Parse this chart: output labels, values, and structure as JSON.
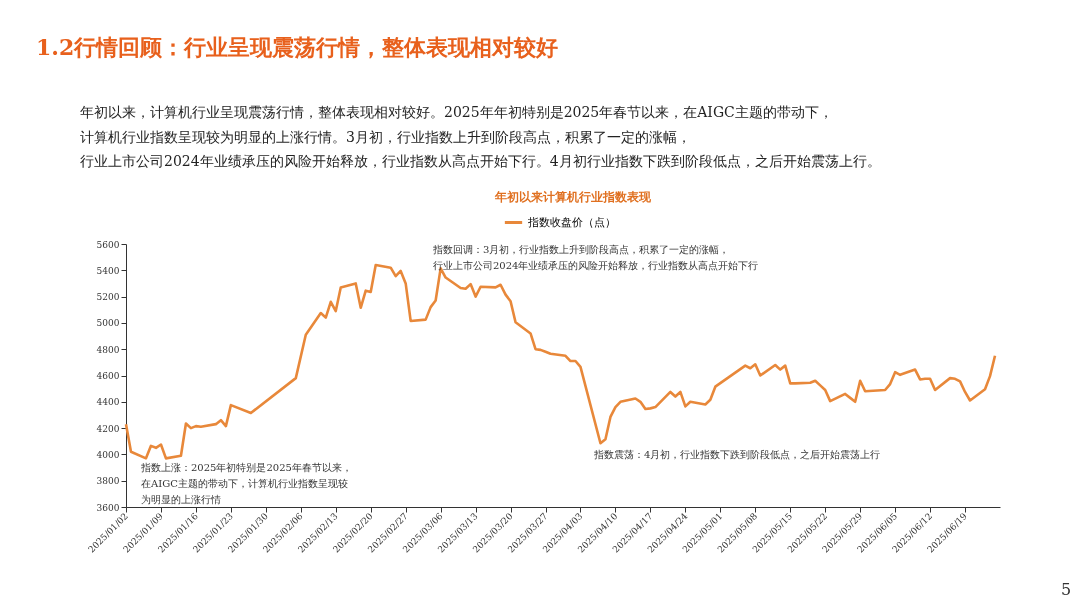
{
  "chart_data": {
    "type": "line",
    "title": "年初以来计算机行业指数表现",
    "subtitle": "年初以来，计算机行业呈现震荡行情，整体表现相对较好。2025年年初特别是2025年春节以来，在AIGC主题的带动下，计算机行业指数呈现较为明显的上涨行情。3月初，行业指数上升到阶段高点，积累了一定的涨幅，行业上市公司2024年业绩承压的风险开始释放，行业指数从高点开始下行。4月初行业指数下跌到阶段低点，之后开始震荡上行。",
    "annotations": [
      "1.2行情回顾：行业呈现震荡行情，整体表现相对较好",
      "指数上涨：2025年初特别是2025年春节以来，在AIGC主题的带动下，计算机行业指数呈现较为明显的上涨行情",
      "指数回调：3月初，行业指数上升到阶段高点，积累了一定的涨幅，行业上市公司2024年业绩承压的风险开始释放，行业指数从高点开始下行",
      "指数震荡：4月初，行业指数下跌到阶段低点，之后开始震荡上行",
      "5"
    ],
    "x": [
      "2025-01-02",
      "2025-01-03",
      "2025-01-06",
      "2025-01-07",
      "2025-01-08",
      "2025-01-09",
      "2025-01-10",
      "2025-01-13",
      "2025-01-14",
      "2025-01-15",
      "2025-01-16",
      "2025-01-17",
      "2025-01-20",
      "2025-01-21",
      "2025-01-22",
      "2025-01-23",
      "2025-01-27",
      "2025-02-05",
      "2025-02-07",
      "2025-02-10",
      "2025-02-11",
      "2025-02-12",
      "2025-02-13",
      "2025-02-14",
      "2025-02-17",
      "2025-02-18",
      "2025-02-19",
      "2025-02-20",
      "2025-02-21",
      "2025-02-24",
      "2025-02-25",
      "2025-02-26",
      "2025-02-27",
      "2025-02-28",
      "2025-03-03",
      "2025-03-04",
      "2025-03-05",
      "2025-03-06",
      "2025-03-07",
      "2025-03-10",
      "2025-03-11",
      "2025-03-12",
      "2025-03-13",
      "2025-03-14",
      "2025-03-17",
      "2025-03-18",
      "2025-03-19",
      "2025-03-20",
      "2025-03-21",
      "2025-03-24",
      "2025-03-25",
      "2025-03-26",
      "2025-03-27",
      "2025-03-28",
      "2025-03-31",
      "2025-04-01",
      "2025-04-02",
      "2025-04-03",
      "2025-04-07",
      "2025-04-08",
      "2025-04-09",
      "2025-04-10",
      "2025-04-11",
      "2025-04-14",
      "2025-04-15",
      "2025-04-16",
      "2025-04-17",
      "2025-04-18",
      "2025-04-21",
      "2025-04-22",
      "2025-04-23",
      "2025-04-24",
      "2025-04-25",
      "2025-04-28",
      "2025-04-29",
      "2025-04-30",
      "2025-05-06",
      "2025-05-07",
      "2025-05-08",
      "2025-05-09",
      "2025-05-12",
      "2025-05-13",
      "2025-05-14",
      "2025-05-15",
      "2025-05-16",
      "2025-05-19",
      "2025-05-20",
      "2025-05-21",
      "2025-05-22",
      "2025-05-23",
      "2025-05-26",
      "2025-05-27",
      "2025-05-28",
      "2025-05-29",
      "2025-05-30",
      "2025-06-03",
      "2025-06-04",
      "2025-06-05",
      "2025-06-06",
      "2025-06-09",
      "2025-06-10",
      "2025-06-11",
      "2025-06-12",
      "2025-06-13",
      "2025-06-16",
      "2025-06-17",
      "2025-06-18",
      "2025-06-19",
      "2025-06-20",
      "2025-06-23",
      "2025-06-24",
      "2025-06-25"
    ],
    "series": [
      {
        "name": "指数收盘价（点）",
        "color": "#e8883a",
        "values": [
          4230,
          4020,
          3970,
          4065,
          4050,
          4075,
          3970,
          3990,
          4235,
          4200,
          4215,
          4210,
          4230,
          4260,
          4215,
          4375,
          4315,
          4580,
          4910,
          5075,
          5040,
          5160,
          5090,
          5270,
          5300,
          5115,
          5245,
          5235,
          5440,
          5420,
          5355,
          5395,
          5300,
          5015,
          5025,
          5120,
          5170,
          5415,
          5345,
          5265,
          5260,
          5295,
          5200,
          5275,
          5270,
          5290,
          5215,
          5165,
          5005,
          4920,
          4800,
          4795,
          4780,
          4765,
          4750,
          4710,
          4710,
          4665,
          4085,
          4115,
          4285,
          4360,
          4400,
          4425,
          4400,
          4345,
          4350,
          4360,
          4475,
          4440,
          4475,
          4365,
          4400,
          4380,
          4415,
          4515,
          4675,
          4655,
          4685,
          4600,
          4680,
          4645,
          4675,
          4540,
          4540,
          4545,
          4560,
          4525,
          4490,
          4405,
          4460,
          4430,
          4400,
          4560,
          4480,
          4490,
          4535,
          4625,
          4605,
          4645,
          4570,
          4575,
          4575,
          4490,
          4580,
          4575,
          4555,
          4475,
          4410,
          4495,
          4595,
          4750
        ]
      }
    ],
    "xlim": [
      "2025-01-02",
      "2025-06-26"
    ],
    "xticks": [
      {
        "value": "2025-01-02",
        "label": "2025/01/02"
      },
      {
        "value": "2025-01-09",
        "label": "2025/01/09"
      },
      {
        "value": "2025-01-16",
        "label": "2025/01/16"
      },
      {
        "value": "2025-01-23",
        "label": "2025/01/23"
      },
      {
        "value": "2025-01-30",
        "label": "2025/01/30"
      },
      {
        "value": "2025-02-06",
        "label": "2025/02/06"
      },
      {
        "value": "2025-02-13",
        "label": "2025/02/13"
      },
      {
        "value": "2025-02-20",
        "label": "2025/02/20"
      },
      {
        "value": "2025-02-27",
        "label": "2025/02/27"
      },
      {
        "value": "2025-03-06",
        "label": "2025/03/06"
      },
      {
        "value": "2025-03-13",
        "label": "2025/03/13"
      },
      {
        "value": "2025-03-20",
        "label": "2025/03/20"
      },
      {
        "value": "2025-03-27",
        "label": "2025/03/27"
      },
      {
        "value": "2025-04-03",
        "label": "2025/04/03"
      },
      {
        "value": "2025-04-10",
        "label": "2025/04/10"
      },
      {
        "value": "2025-04-17",
        "label": "2025/04/17"
      },
      {
        "value": "2025-04-24",
        "label": "2025/04/24"
      },
      {
        "value": "2025-05-01",
        "label": "2025/05/01"
      },
      {
        "value": "2025-05-08",
        "label": "2025/05/08"
      },
      {
        "value": "2025-05-15",
        "label": "2025/05/15"
      },
      {
        "value": "2025-05-22",
        "label": "2025/05/22"
      },
      {
        "value": "2025-05-29",
        "label": "2025/05/29"
      },
      {
        "value": "2025-06-05",
        "label": "2025/06/05"
      },
      {
        "value": "2025-06-12",
        "label": "2025/06/12"
      },
      {
        "value": "2025-06-19",
        "label": "2025/06/19"
      }
    ],
    "ylim": [
      3600,
      5600
    ],
    "yticks": [
      3600,
      3800,
      4000,
      4200,
      4400,
      4600,
      4800,
      5000,
      5200,
      5400,
      5600
    ],
    "grid": false,
    "legend": "top",
    "marker": "none",
    "line_style": "solid"
  }
}
